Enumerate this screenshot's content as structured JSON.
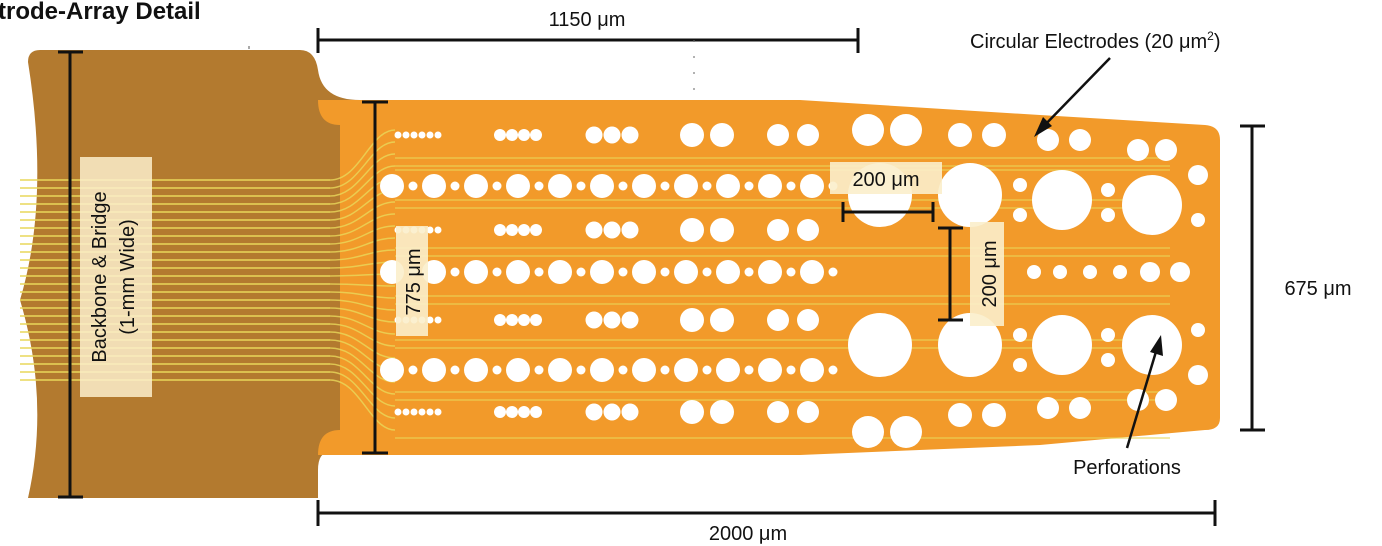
{
  "title": "trode-Array Detail",
  "labels": {
    "width_top": "1150 μm",
    "width_bottom": "2000 μm",
    "height_right": "675 μm",
    "height_left": "775 μm",
    "backbone": "Backbone & Bridge",
    "backbone_sub": "(1-mm Wide)",
    "electrodes_prefix": "Circular Electrodes (20 μm",
    "electrodes_sup": "2",
    "electrodes_suffix": ")",
    "pitch_horizontal": "200 μm",
    "pitch_vertical": "200 μm",
    "perforations": "Perforations"
  },
  "colors": {
    "backbone": "#b37a2f",
    "array": "#f29a2a",
    "traces": "#e9d85a",
    "label_box": "#fbeecb",
    "hole": "#ffffff",
    "ink": "#111111"
  }
}
